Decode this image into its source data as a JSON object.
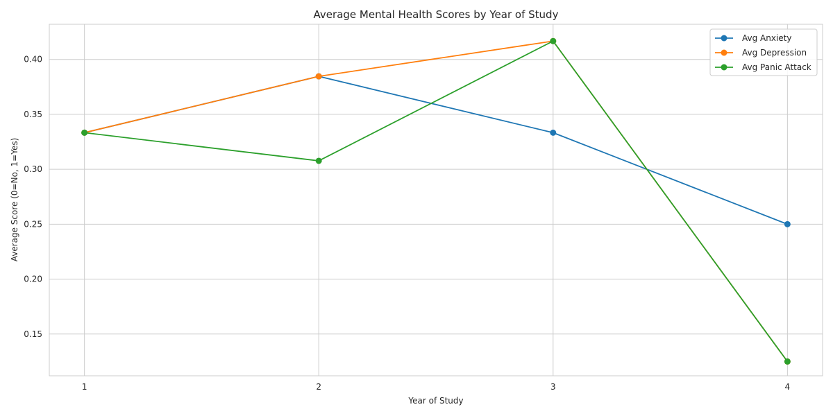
{
  "chart_data": {
    "type": "line",
    "title": "Average Mental Health Scores by Year of Study",
    "xlabel": "Year of Study",
    "ylabel": "Average Score (0=No, 1=Yes)",
    "x": [
      1,
      2,
      3,
      4
    ],
    "x_tick_labels": [
      "1",
      "2",
      "3",
      "4"
    ],
    "xlim": [
      0.85,
      4.15
    ],
    "ylim": [
      0.112,
      0.432
    ],
    "y_ticks": [
      0.15,
      0.2,
      0.25,
      0.3,
      0.35,
      0.4
    ],
    "y_tick_labels": [
      "0.15",
      "0.20",
      "0.25",
      "0.30",
      "0.35",
      "0.40"
    ],
    "grid": true,
    "legend_position": "top-right",
    "series": [
      {
        "name": "Avg Anxiety",
        "color": "#1f77b4",
        "values": [
          0.3333,
          0.3846,
          0.3333,
          0.25
        ]
      },
      {
        "name": "Avg Depression",
        "color": "#ff7f0e",
        "values": [
          0.3333,
          0.3846,
          0.4167,
          0.125
        ]
      },
      {
        "name": "Avg Panic Attack",
        "color": "#2ca02c",
        "values": [
          0.3333,
          0.3077,
          0.4167,
          0.125
        ]
      }
    ]
  }
}
